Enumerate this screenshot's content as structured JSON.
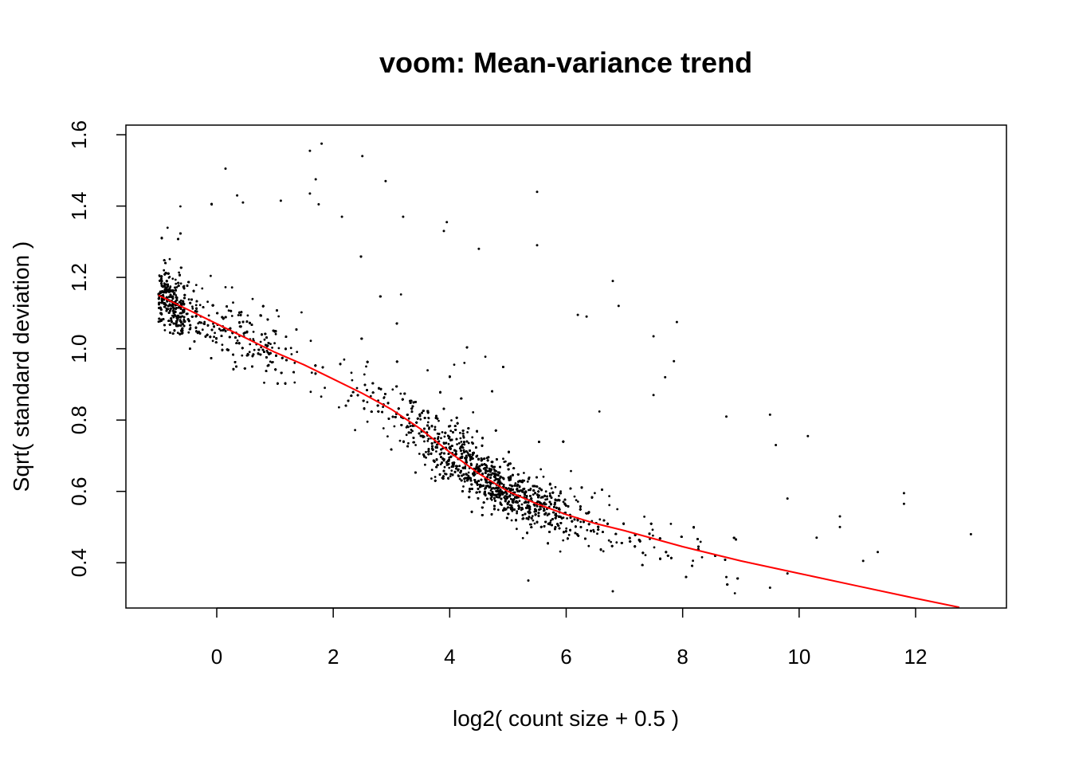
{
  "chart_data": {
    "type": "scatter",
    "title": "voom: Mean-variance trend",
    "xlabel": "log2( count size + 0.5 )",
    "ylabel": "Sqrt( standard deviation )",
    "xlim": [
      -1.56,
      13.56
    ],
    "ylim": [
      0.273,
      1.627
    ],
    "xticks": [
      0,
      2,
      4,
      6,
      8,
      10,
      12
    ],
    "yticks": [
      0.4,
      0.6,
      0.8,
      1.0,
      1.2,
      1.4,
      1.6
    ],
    "xtick_labels": [
      "0",
      "2",
      "4",
      "6",
      "8",
      "10",
      "12"
    ],
    "ytick_labels": [
      "0.4",
      "0.6",
      "0.8",
      "1.0",
      "1.2",
      "1.4",
      "1.6"
    ],
    "grid": false,
    "legend": "none",
    "point_color": "#000000",
    "trend_color": "#ff0000",
    "trend_line": {
      "x": [
        -1.0,
        -0.5,
        0.0,
        0.5,
        1.0,
        1.5,
        2.0,
        2.5,
        3.0,
        3.5,
        4.0,
        4.5,
        5.0,
        5.5,
        6.0,
        6.5,
        7.0,
        8.0,
        9.0,
        10.0,
        11.0,
        12.0,
        12.75
      ],
      "y": [
        1.15,
        1.11,
        1.07,
        1.03,
        0.99,
        0.955,
        0.915,
        0.875,
        0.83,
        0.775,
        0.71,
        0.65,
        0.6,
        0.565,
        0.535,
        0.51,
        0.49,
        0.445,
        0.405,
        0.37,
        0.335,
        0.3,
        0.275
      ]
    },
    "scatter_description": {
      "approx_points": 12000,
      "outliers": [
        {
          "x": 1.8,
          "y": 1.575
        },
        {
          "x": 1.6,
          "y": 1.555
        },
        {
          "x": 2.5,
          "y": 1.54
        },
        {
          "x": 0.15,
          "y": 1.505
        },
        {
          "x": 1.7,
          "y": 1.475
        },
        {
          "x": 2.9,
          "y": 1.47
        },
        {
          "x": 5.5,
          "y": 1.44
        },
        {
          "x": 0.35,
          "y": 1.43
        },
        {
          "x": 1.6,
          "y": 1.435
        },
        {
          "x": 1.1,
          "y": 1.415
        },
        {
          "x": 0.45,
          "y": 1.41
        },
        {
          "x": 1.75,
          "y": 1.405
        },
        {
          "x": 3.2,
          "y": 1.37
        },
        {
          "x": 2.15,
          "y": 1.37
        },
        {
          "x": 3.95,
          "y": 1.355
        },
        {
          "x": 3.9,
          "y": 1.33
        },
        {
          "x": 5.5,
          "y": 1.29
        },
        {
          "x": 4.5,
          "y": 1.28
        },
        {
          "x": 6.8,
          "y": 1.19
        },
        {
          "x": 6.9,
          "y": 1.12
        },
        {
          "x": 6.2,
          "y": 1.095
        },
        {
          "x": 6.35,
          "y": 1.09
        },
        {
          "x": 7.9,
          "y": 1.075
        },
        {
          "x": 7.5,
          "y": 1.035
        },
        {
          "x": 7.85,
          "y": 0.965
        },
        {
          "x": 7.5,
          "y": 0.87
        },
        {
          "x": 7.7,
          "y": 0.92
        },
        {
          "x": 8.75,
          "y": 0.81
        },
        {
          "x": 9.5,
          "y": 0.815
        },
        {
          "x": 10.15,
          "y": 0.755
        },
        {
          "x": 9.6,
          "y": 0.73
        },
        {
          "x": 9.8,
          "y": 0.58
        },
        {
          "x": 10.7,
          "y": 0.53
        },
        {
          "x": 10.7,
          "y": 0.5
        },
        {
          "x": 11.8,
          "y": 0.595
        },
        {
          "x": 11.8,
          "y": 0.565
        },
        {
          "x": 12.95,
          "y": 0.48
        },
        {
          "x": 11.35,
          "y": 0.43
        },
        {
          "x": 11.1,
          "y": 0.405
        },
        {
          "x": 10.3,
          "y": 0.47
        },
        {
          "x": 9.5,
          "y": 0.33
        },
        {
          "x": 9.8,
          "y": 0.37
        },
        {
          "x": 8.75,
          "y": 0.36
        },
        {
          "x": 6.8,
          "y": 0.32
        },
        {
          "x": 5.35,
          "y": 0.35
        }
      ]
    }
  }
}
